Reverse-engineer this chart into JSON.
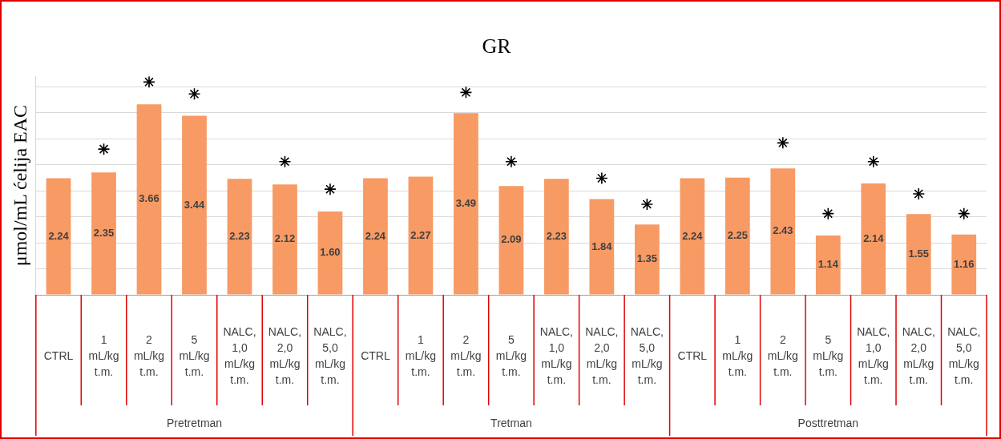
{
  "chart_data": {
    "type": "bar",
    "title": "GR",
    "ylabel": "μmol/mL ćelija EAC",
    "categories": [
      "CTRL",
      "1 mL/kg t.m.",
      "2 mL/kg t.m.",
      "5 mL/kg t.m.",
      "NALC, 1,0 mL/kg t.m.",
      "NALC, 2,0 mL/kg t.m.",
      "NALC, 5,0 mL/kg t.m.",
      "CTRL",
      "1 mL/kg t.m.",
      "2 mL/kg t.m.",
      "5 mL/kg t.m.",
      "NALC, 1,0 mL/kg t.m.",
      "NALC, 2,0 mL/kg t.m.",
      "NALC, 5,0 mL/kg t.m.",
      "CTRL",
      "1 mL/kg t.m.",
      "2 mL/kg t.m.",
      "5 mL/kg t.m.",
      "NALC, 1,0 mL/kg t.m.",
      "NALC, 2,0 mL/kg t.m.",
      "NALC, 5,0 mL/kg t.m."
    ],
    "values": [
      2.24,
      2.35,
      3.66,
      3.44,
      2.23,
      2.12,
      1.6,
      2.24,
      2.27,
      3.49,
      2.09,
      2.23,
      1.84,
      1.35,
      2.24,
      2.25,
      2.43,
      1.14,
      2.14,
      1.55,
      1.16
    ],
    "value_labels": [
      "2.24",
      "2.35",
      "3.66",
      "3.44",
      "2.23",
      "2.12",
      "1.60",
      "2.24",
      "2.27",
      "3.49",
      "2.09",
      "2.23",
      "1.84",
      "1.35",
      "2.24",
      "2.25",
      "2.43",
      "1.14",
      "2.14",
      "1.55",
      "1.16"
    ],
    "color": "#f79a63",
    "series": [
      {
        "type": "scatter",
        "color": "#000000",
        "values": [
          null,
          2.8,
          4.09,
          3.86,
          null,
          2.56,
          2.03,
          null,
          null,
          3.89,
          2.56,
          null,
          2.24,
          1.74,
          null,
          null,
          2.92,
          1.56,
          2.56,
          1.94,
          1.56
        ]
      }
    ],
    "marker": "cross",
    "ylim": [
      0,
      4.2
    ],
    "yticks": [
      {
        "value": 0,
        "label": null
      },
      {
        "value": 0.5,
        "label": null
      },
      {
        "value": 1,
        "label": null
      },
      {
        "value": 1.5,
        "label": null
      },
      {
        "value": 2,
        "label": null
      },
      {
        "value": 2.5,
        "label": null
      },
      {
        "value": 3,
        "label": null
      },
      {
        "value": 3.5,
        "label": null
      },
      {
        "value": 4,
        "label": null
      }
    ],
    "tick_labels": "x",
    "grid": "y",
    "annotations": [
      "Pretretman",
      "Tretman",
      "Posttretman"
    ]
  }
}
